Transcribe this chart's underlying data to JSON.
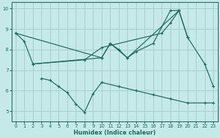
{
  "xlabel": "Humidex (Indice chaleur)",
  "bg_color": "#c5e8e8",
  "grid_color": "#a8cccc",
  "line_color": "#1a6b5a",
  "xlim": [
    -0.5,
    23.5
  ],
  "ylim": [
    4.5,
    10.3
  ],
  "yticks": [
    5,
    6,
    7,
    8,
    9,
    10
  ],
  "xticks": [
    0,
    1,
    2,
    3,
    4,
    5,
    6,
    7,
    8,
    9,
    10,
    11,
    12,
    13,
    14,
    15,
    16,
    17,
    18,
    19,
    20,
    21,
    22,
    23
  ],
  "line1_x": [
    0,
    1,
    2,
    10,
    11,
    12,
    13,
    14,
    16,
    18,
    19,
    20,
    22,
    23
  ],
  "line1_y": [
    8.8,
    8.4,
    7.3,
    7.6,
    8.3,
    8.0,
    7.6,
    7.9,
    8.3,
    9.9,
    9.9,
    8.6,
    7.3,
    6.2
  ],
  "line2_x": [
    2,
    8,
    10,
    17,
    18,
    19
  ],
  "line2_y": [
    7.3,
    7.5,
    8.1,
    8.8,
    9.3,
    9.9
  ],
  "line3_x": [
    0,
    10,
    11,
    13,
    19,
    20
  ],
  "line3_y": [
    8.8,
    7.6,
    8.3,
    7.6,
    9.9,
    8.6
  ],
  "line4_x": [
    3,
    4,
    5,
    6,
    7,
    8,
    9,
    10,
    12,
    14,
    16,
    18,
    20,
    22,
    23
  ],
  "line4_y": [
    6.6,
    6.5,
    6.2,
    5.9,
    5.35,
    4.95,
    5.85,
    6.4,
    6.2,
    6.0,
    5.8,
    5.6,
    5.4,
    5.4,
    5.4
  ]
}
